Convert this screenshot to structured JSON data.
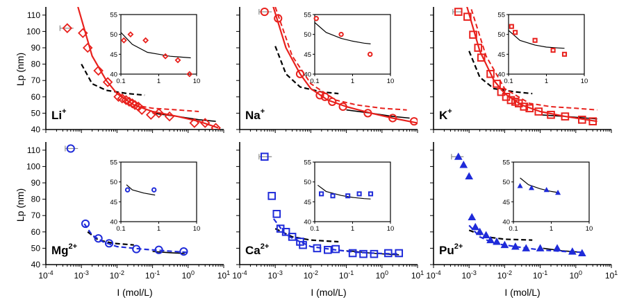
{
  "figure": {
    "y_axis_title": "Lp (nm)",
    "x_axis_title": "I (mol/L)"
  },
  "chart_data": [
    {
      "type": "scatter",
      "ion": "Li",
      "charge": "+",
      "color": "#e8211d",
      "marker": "diamond",
      "fit_style": "solid-red",
      "xscale": "log",
      "xlim": [
        0.0001,
        10
      ],
      "ylim": [
        40,
        115
      ],
      "x": [
        0.0004,
        0.0011,
        0.0015,
        0.003,
        0.0055,
        0.011,
        0.014,
        0.018,
        0.022,
        0.027,
        0.032,
        0.04,
        0.05,
        0.09,
        0.15,
        0.3,
        1.5,
        3.0,
        6.0
      ],
      "y": [
        102,
        99,
        90,
        76,
        69,
        60,
        59,
        58,
        57,
        56,
        55,
        54,
        52,
        49,
        50,
        48,
        44,
        44,
        41
      ],
      "xerr_first": [
        0.00025,
        0.0006
      ],
      "red_fit": {
        "x": [
          0.0008,
          0.002,
          0.005,
          0.01,
          0.03,
          0.1,
          0.5,
          2,
          7
        ],
        "y": [
          115,
          85,
          70,
          62,
          55,
          51,
          48,
          45,
          41
        ]
      },
      "red_dashed": {
        "x": [
          0.03,
          0.1,
          0.5,
          2
        ],
        "y": [
          55,
          53,
          52,
          51
        ]
      },
      "black_dashed": {
        "x": [
          0.001,
          0.002,
          0.005,
          0.02,
          0.06
        ],
        "y": [
          80,
          68,
          64,
          62,
          61
        ]
      },
      "black_solid": {
        "x": [
          0.1,
          0.5,
          2,
          6
        ],
        "y": [
          50,
          48,
          46,
          45
        ]
      },
      "inset": {
        "xlim": [
          0.1,
          10
        ],
        "ylim": [
          40,
          55
        ],
        "yticks": [
          40,
          45,
          50,
          55
        ],
        "x": [
          0.12,
          0.18,
          0.45,
          1.5,
          3.2,
          6.5
        ],
        "y": [
          48.5,
          50,
          48.5,
          44.5,
          43.5,
          40
        ],
        "fit": {
          "x": [
            0.1,
            0.2,
            0.5,
            1,
            2,
            5,
            7
          ],
          "y": [
            50.5,
            47.5,
            45.5,
            45,
            44.5,
            44.2,
            44.1
          ]
        }
      }
    },
    {
      "type": "scatter",
      "ion": "Na",
      "charge": "+",
      "color": "#e8211d",
      "marker": "circle",
      "fit_style": "solid-red",
      "xscale": "log",
      "xlim": [
        0.0001,
        10
      ],
      "ylim": [
        40,
        115
      ],
      "x": [
        0.0005,
        0.0012,
        0.005,
        0.018,
        0.025,
        0.04,
        0.08,
        0.4,
        2.0,
        8.0
      ],
      "y": [
        112,
        108,
        74,
        61,
        60,
        57,
        54,
        50,
        47,
        45
      ],
      "xerr_first": [
        0.00035,
        0.0008
      ],
      "red_fit": {
        "x": [
          0.0008,
          0.002,
          0.005,
          0.01,
          0.03,
          0.1,
          0.5,
          2,
          10
        ],
        "y": [
          118,
          90,
          74,
          65,
          58,
          54,
          50,
          47,
          44
        ]
      },
      "red_dashed": {
        "x": [
          0.001,
          0.003,
          0.01,
          0.05,
          0.2,
          1,
          5
        ],
        "y": [
          115,
          85,
          68,
          58,
          55,
          53,
          52
        ]
      },
      "black_dashed": {
        "x": [
          0.001,
          0.002,
          0.005,
          0.02,
          0.06
        ],
        "y": [
          91,
          74,
          66,
          63,
          62
        ]
      },
      "black_solid": {
        "x": [
          0.1,
          0.5,
          2,
          6
        ],
        "y": [
          52,
          50,
          48,
          47
        ]
      },
      "inset": {
        "xlim": [
          0.1,
          10
        ],
        "ylim": [
          40,
          55
        ],
        "yticks": [
          40,
          45,
          50,
          55
        ],
        "x": [
          0.11,
          0.5,
          2.9
        ],
        "y": [
          54,
          50,
          45
        ],
        "fit": {
          "x": [
            0.1,
            0.2,
            0.5,
            1,
            2,
            3
          ],
          "y": [
            53,
            50.5,
            49,
            48.3,
            47.8,
            47.6
          ]
        }
      }
    },
    {
      "type": "scatter",
      "ion": "K",
      "charge": "+",
      "color": "#e8211d",
      "marker": "square",
      "fit_style": "solid-red",
      "xscale": "log",
      "xlim": [
        0.0001,
        10
      ],
      "ylim": [
        40,
        115
      ],
      "x": [
        0.0005,
        0.0009,
        0.0013,
        0.0018,
        0.0022,
        0.004,
        0.006,
        0.008,
        0.011,
        0.015,
        0.02,
        0.025,
        0.035,
        0.05,
        0.09,
        0.2,
        0.5,
        1.5,
        3.0
      ],
      "y": [
        112,
        109,
        98,
        90,
        84,
        74,
        68,
        63,
        60,
        58,
        57,
        56,
        54,
        53,
        51,
        49,
        48,
        46,
        45
      ],
      "xerr_first": [
        0.00035,
        0.0006
      ],
      "red_fit": {
        "x": [
          0.0008,
          0.002,
          0.005,
          0.01,
          0.03,
          0.1,
          0.5,
          2,
          4
        ],
        "y": [
          118,
          88,
          70,
          62,
          55,
          51,
          48,
          46,
          45
        ]
      },
      "red_dashed": {
        "x": [
          0.001,
          0.003,
          0.01,
          0.05,
          0.2,
          1,
          4
        ],
        "y": [
          118,
          85,
          65,
          56,
          54,
          53,
          52
        ]
      },
      "black_dashed": {
        "x": [
          0.001,
          0.002,
          0.005,
          0.02,
          0.06
        ],
        "y": [
          88,
          72,
          65,
          63,
          62
        ]
      },
      "black_solid": {
        "x": [
          0.1,
          0.5,
          2,
          4
        ],
        "y": [
          49,
          48,
          47,
          46.5
        ]
      },
      "inset": {
        "xlim": [
          0.1,
          10
        ],
        "ylim": [
          40,
          55
        ],
        "yticks": [
          40,
          45,
          50,
          55
        ],
        "x": [
          0.12,
          0.15,
          0.5,
          1.5,
          3.0
        ],
        "y": [
          52,
          50.5,
          48.5,
          46,
          45
        ],
        "fit": {
          "x": [
            0.1,
            0.2,
            0.5,
            1,
            2,
            3
          ],
          "y": [
            51,
            48.5,
            47.3,
            46.8,
            46.6,
            46.5
          ]
        }
      }
    },
    {
      "type": "scatter",
      "ion": "Mg",
      "charge": "2+",
      "color": "#1f2bd9",
      "marker": "circle",
      "fit_style": "dashed-blue",
      "xscale": "log",
      "xlim": [
        0.0001,
        10
      ],
      "ylim": [
        40,
        115
      ],
      "x": [
        0.0005,
        0.0013,
        0.003,
        0.006,
        0.035,
        0.15,
        0.75
      ],
      "y": [
        111,
        65,
        56,
        53,
        49.5,
        49,
        48
      ],
      "xerr_first": [
        0.00035,
        0.0008
      ],
      "blue_dashed": {
        "x": [
          0.0012,
          0.002,
          0.004,
          0.01,
          0.05,
          0.2,
          0.9
        ],
        "y": [
          65,
          58,
          54,
          51,
          49.5,
          48.5,
          47.5
        ]
      },
      "black_dashed": {
        "x": [
          0.0015,
          0.003,
          0.008,
          0.03
        ],
        "y": [
          60,
          55,
          53,
          52
        ]
      },
      "black_solid": {
        "x": [
          0.1,
          0.3,
          0.8
        ],
        "y": [
          48,
          47.3,
          46.8
        ]
      },
      "inset": {
        "xlim": [
          0.1,
          10
        ],
        "ylim": [
          40,
          55
        ],
        "yticks": [
          40,
          45,
          50,
          55
        ],
        "x": [
          0.15,
          0.75
        ],
        "y": [
          48,
          48
        ],
        "fit": {
          "x": [
            0.14,
            0.2,
            0.4,
            0.8
          ],
          "y": [
            49.3,
            48,
            47.2,
            46.7
          ]
        }
      }
    },
    {
      "type": "scatter",
      "ion": "Ca",
      "charge": "2+",
      "color": "#1f2bd9",
      "marker": "square",
      "fit_style": "dashed-blue",
      "xscale": "log",
      "xlim": [
        0.0001,
        10
      ],
      "ylim": [
        40,
        115
      ],
      "x": [
        0.0005,
        0.0008,
        0.0011,
        0.0014,
        0.002,
        0.003,
        0.005,
        0.006,
        0.015,
        0.03,
        0.05,
        0.15,
        0.3,
        0.6,
        1.5,
        3.0
      ],
      "y": [
        106,
        82,
        71,
        62,
        60,
        57,
        54,
        52,
        50,
        49,
        49.5,
        47,
        46.5,
        46.5,
        47,
        47
      ],
      "xerr_first": [
        0.00035,
        0.0008
      ],
      "blue_dashed": {
        "x": [
          0.0009,
          0.002,
          0.005,
          0.01,
          0.05,
          0.2,
          1,
          3
        ],
        "y": [
          68,
          58,
          54,
          51,
          49,
          47.5,
          46.8,
          46.5
        ]
      },
      "black_dashed": {
        "x": [
          0.001,
          0.003,
          0.01,
          0.06
        ],
        "y": [
          62,
          57,
          55,
          54
        ]
      },
      "black_solid": {
        "x": [
          0.1,
          0.5,
          2,
          3
        ],
        "y": [
          48.5,
          47,
          46.2,
          46
        ]
      },
      "inset": {
        "xlim": [
          0.1,
          10
        ],
        "ylim": [
          40,
          55
        ],
        "yticks": [
          40,
          45,
          50,
          55
        ],
        "x": [
          0.15,
          0.3,
          0.75,
          1.5,
          3.0
        ],
        "y": [
          47,
          46.5,
          46.5,
          47,
          47
        ],
        "fit": {
          "x": [
            0.12,
            0.2,
            0.5,
            1,
            2,
            3
          ],
          "y": [
            49.2,
            47.6,
            46.6,
            46.1,
            45.8,
            45.7
          ]
        }
      }
    },
    {
      "type": "scatter",
      "ion": "Pu",
      "charge": "2+",
      "color": "#1f2bd9",
      "marker": "triangle",
      "fit_style": "dashed-blue",
      "xscale": "log",
      "xlim": [
        0.0001,
        10
      ],
      "ylim": [
        40,
        115
      ],
      "x": [
        0.0005,
        0.0007,
        0.001,
        0.0012,
        0.0015,
        0.002,
        0.003,
        0.004,
        0.006,
        0.01,
        0.02,
        0.04,
        0.1,
        0.3,
        0.8,
        1.5
      ],
      "y": [
        106,
        101,
        94,
        69,
        63,
        60,
        58,
        55,
        54,
        52,
        51,
        50,
        50,
        50,
        48,
        47
      ],
      "xerr_first": [
        0.00032,
        0.0007
      ],
      "blue_dashed": {
        "x": [
          0.001,
          0.002,
          0.005,
          0.02,
          0.1,
          0.5,
          1.6
        ],
        "y": [
          64,
          57,
          53,
          51,
          49,
          48,
          47.5
        ]
      },
      "black_dashed": {
        "x": [
          0.001,
          0.003,
          0.01,
          0.06
        ],
        "y": [
          61,
          57,
          55.5,
          55
        ]
      },
      "black_solid": {
        "x": [
          0.12,
          0.4,
          1.5
        ],
        "y": [
          50,
          48.5,
          47.5
        ]
      },
      "inset": {
        "xlim": [
          0.1,
          10
        ],
        "ylim": [
          40,
          55
        ],
        "yticks": [
          40,
          45,
          50,
          55
        ],
        "x": [
          0.15,
          0.3,
          0.75,
          1.5
        ],
        "y": [
          49,
          48.5,
          48,
          47.3
        ],
        "fit": {
          "x": [
            0.15,
            0.25,
            0.5,
            1,
            1.6
          ],
          "y": [
            51,
            49.3,
            48.3,
            47.6,
            47.3
          ]
        }
      }
    }
  ]
}
